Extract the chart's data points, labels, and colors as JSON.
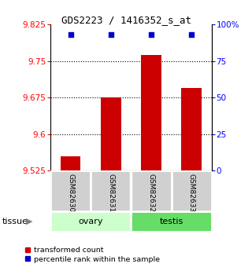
{
  "title": "GDS2223 / 1416352_s_at",
  "samples": [
    "GSM82630",
    "GSM82631",
    "GSM82632",
    "GSM82633"
  ],
  "bar_values": [
    9.555,
    9.675,
    9.762,
    9.695
  ],
  "percentile_values": [
    93,
    93,
    93,
    93
  ],
  "ymin": 9.525,
  "ymax": 9.825,
  "y_ticks": [
    9.525,
    9.6,
    9.675,
    9.75,
    9.825
  ],
  "y_right_ticks": [
    0,
    25,
    50,
    75,
    100
  ],
  "bar_color": "#cc0000",
  "percentile_color": "#0000cc",
  "bar_width": 0.5,
  "tissue_groups": [
    {
      "label": "ovary",
      "indices": [
        0,
        1
      ],
      "color": "#ccffcc"
    },
    {
      "label": "testis",
      "indices": [
        2,
        3
      ],
      "color": "#66dd66"
    }
  ],
  "tissue_label": "tissue",
  "legend_bar_label": "transformed count",
  "legend_pct_label": "percentile rank within the sample",
  "sample_box_color": "#d0d0d0",
  "sample_box_edge": "white"
}
